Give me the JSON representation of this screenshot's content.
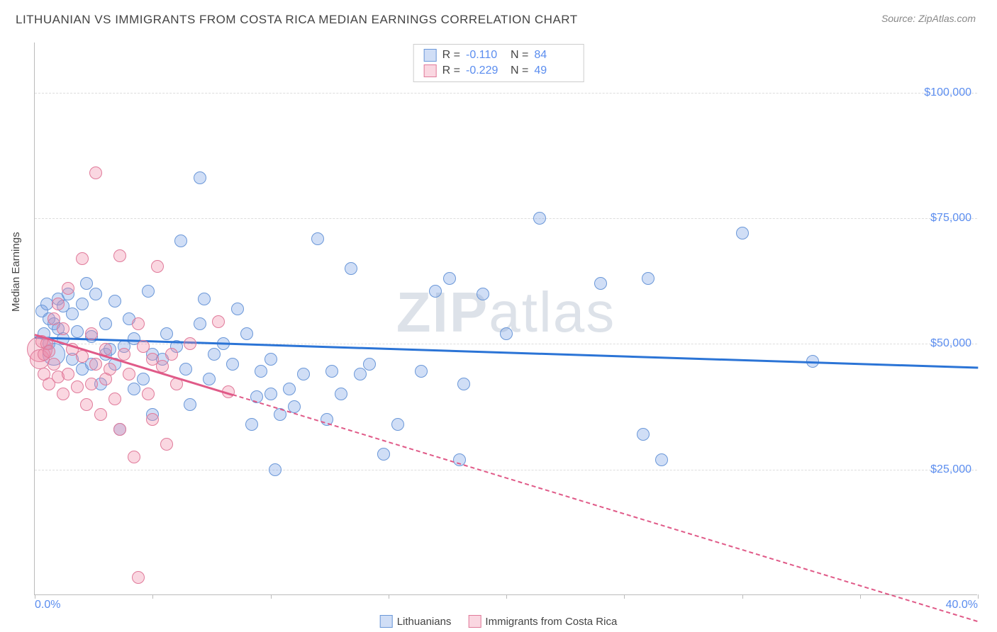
{
  "header": {
    "title": "LITHUANIAN VS IMMIGRANTS FROM COSTA RICA MEDIAN EARNINGS CORRELATION CHART",
    "source": "Source: ZipAtlas.com"
  },
  "watermark": {
    "part1": "ZIP",
    "part2": "atlas"
  },
  "chart": {
    "type": "scatter",
    "ylabel": "Median Earnings",
    "xlim": [
      0,
      40
    ],
    "ylim": [
      0,
      110000
    ],
    "x_axis_label_left": "0.0%",
    "x_axis_label_right": "40.0%",
    "xtick_positions": [
      0,
      5,
      10,
      15,
      20,
      25,
      30,
      35,
      40
    ],
    "ylines": [
      {
        "v": 25000,
        "label": "$25,000"
      },
      {
        "v": 50000,
        "label": "$50,000"
      },
      {
        "v": 75000,
        "label": "$75,000"
      },
      {
        "v": 100000,
        "label": "$100,000"
      }
    ],
    "background_color": "#ffffff",
    "grid_color": "#dddddd",
    "axis_color": "#bbbbbb",
    "tick_label_color": "#5b8def",
    "series": [
      {
        "id": "lithuanians",
        "label": "Lithuanians",
        "fill": "rgba(120,160,230,0.35)",
        "stroke": "#6a97d8",
        "line_color": "#2b74d6",
        "R": "-0.110",
        "N": "84",
        "trend": {
          "x1": 0,
          "y1": 51500,
          "x2": 40,
          "y2": 45500,
          "extend_dashed_to": null
        },
        "marker_r": 9,
        "points": [
          [
            0.3,
            56500
          ],
          [
            0.4,
            52000
          ],
          [
            0.5,
            58000
          ],
          [
            0.6,
            55000
          ],
          [
            0.6,
            50000
          ],
          [
            0.8,
            54000
          ],
          [
            0.8,
            48000,
            16
          ],
          [
            1.0,
            59000
          ],
          [
            1.0,
            53000
          ],
          [
            1.2,
            57500
          ],
          [
            1.2,
            51000
          ],
          [
            1.4,
            60000
          ],
          [
            1.6,
            47000
          ],
          [
            1.6,
            56000
          ],
          [
            1.8,
            52500
          ],
          [
            2.0,
            45000
          ],
          [
            2.0,
            58000
          ],
          [
            2.2,
            62000
          ],
          [
            2.4,
            46000
          ],
          [
            2.4,
            51500
          ],
          [
            2.6,
            60000
          ],
          [
            2.8,
            42000
          ],
          [
            3.0,
            48000
          ],
          [
            3.0,
            54000
          ],
          [
            3.2,
            49000
          ],
          [
            3.4,
            46000
          ],
          [
            3.4,
            58500
          ],
          [
            3.6,
            33000
          ],
          [
            3.8,
            49500
          ],
          [
            4.0,
            55000
          ],
          [
            4.2,
            41000
          ],
          [
            4.2,
            51000
          ],
          [
            4.6,
            43000
          ],
          [
            4.8,
            60500
          ],
          [
            5.0,
            48000
          ],
          [
            5.0,
            36000
          ],
          [
            5.4,
            47000
          ],
          [
            5.6,
            52000
          ],
          [
            6.0,
            49500
          ],
          [
            6.2,
            70500
          ],
          [
            6.4,
            45000
          ],
          [
            6.6,
            38000
          ],
          [
            7.0,
            54000
          ],
          [
            7.0,
            83000
          ],
          [
            7.2,
            59000
          ],
          [
            7.4,
            43000
          ],
          [
            7.6,
            48000
          ],
          [
            8.0,
            50000
          ],
          [
            8.4,
            46000
          ],
          [
            8.6,
            57000
          ],
          [
            9.0,
            52000
          ],
          [
            9.2,
            34000
          ],
          [
            9.4,
            39500
          ],
          [
            9.6,
            44500
          ],
          [
            10.0,
            40000
          ],
          [
            10.0,
            47000
          ],
          [
            10.2,
            25000
          ],
          [
            10.4,
            36000
          ],
          [
            10.8,
            41000
          ],
          [
            11.0,
            37500
          ],
          [
            11.4,
            44000
          ],
          [
            12.0,
            71000
          ],
          [
            12.4,
            35000
          ],
          [
            12.6,
            44500
          ],
          [
            13.0,
            40000
          ],
          [
            13.4,
            65000
          ],
          [
            13.8,
            44000
          ],
          [
            14.2,
            46000
          ],
          [
            14.8,
            28000
          ],
          [
            15.4,
            34000
          ],
          [
            16.4,
            44500
          ],
          [
            17.0,
            60500
          ],
          [
            17.6,
            63000
          ],
          [
            18.0,
            27000
          ],
          [
            18.2,
            42000
          ],
          [
            19.0,
            60000
          ],
          [
            20.0,
            52000
          ],
          [
            21.4,
            75000
          ],
          [
            24.0,
            62000
          ],
          [
            25.8,
            32000
          ],
          [
            26.6,
            27000
          ],
          [
            26.0,
            63000
          ],
          [
            30.0,
            72000
          ],
          [
            33.0,
            46500
          ]
        ]
      },
      {
        "id": "costarica",
        "label": "Immigrants from Costa Rica",
        "fill": "rgba(240,140,170,0.35)",
        "stroke": "#e07a9a",
        "line_color": "#e05a88",
        "R": "-0.229",
        "N": "49",
        "trend": {
          "x1": 0,
          "y1": 52000,
          "x2": 8.4,
          "y2": 40000,
          "extend_dashed_to": 40
        },
        "marker_r": 9,
        "points": [
          [
            0.2,
            49000,
            18
          ],
          [
            0.2,
            47000,
            14
          ],
          [
            0.3,
            50500
          ],
          [
            0.4,
            48000
          ],
          [
            0.4,
            44000
          ],
          [
            0.5,
            50000
          ],
          [
            0.6,
            48500
          ],
          [
            0.6,
            42000
          ],
          [
            0.8,
            55000
          ],
          [
            0.8,
            46000
          ],
          [
            1.0,
            58000
          ],
          [
            1.0,
            43500
          ],
          [
            1.2,
            53000
          ],
          [
            1.2,
            40000
          ],
          [
            1.4,
            61000
          ],
          [
            1.4,
            44000
          ],
          [
            1.6,
            49000
          ],
          [
            1.8,
            41500
          ],
          [
            2.0,
            67000
          ],
          [
            2.0,
            47500
          ],
          [
            2.2,
            38000
          ],
          [
            2.4,
            52000
          ],
          [
            2.4,
            42000
          ],
          [
            2.6,
            84000
          ],
          [
            2.6,
            46000
          ],
          [
            2.8,
            36000
          ],
          [
            3.0,
            49000
          ],
          [
            3.0,
            43000
          ],
          [
            3.2,
            45000
          ],
          [
            3.4,
            39000
          ],
          [
            3.6,
            67500
          ],
          [
            3.6,
            33000
          ],
          [
            3.8,
            48000
          ],
          [
            4.0,
            44000
          ],
          [
            4.2,
            27500
          ],
          [
            4.4,
            54000
          ],
          [
            4.4,
            3500
          ],
          [
            4.6,
            49500
          ],
          [
            4.8,
            40000
          ],
          [
            5.0,
            47000
          ],
          [
            5.0,
            35000
          ],
          [
            5.2,
            65500
          ],
          [
            5.4,
            45500
          ],
          [
            5.6,
            30000
          ],
          [
            5.8,
            48000
          ],
          [
            6.0,
            42000
          ],
          [
            6.6,
            50000
          ],
          [
            7.8,
            54500
          ],
          [
            8.2,
            40500
          ]
        ]
      }
    ]
  }
}
